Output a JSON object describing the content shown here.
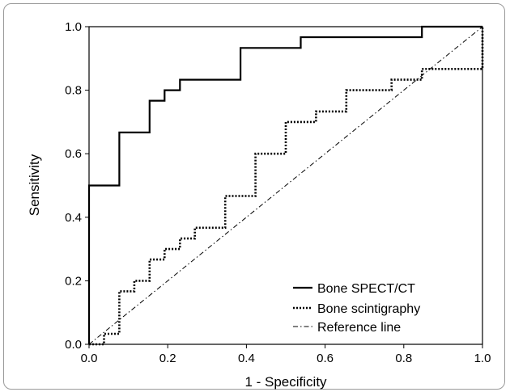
{
  "chart_data": {
    "type": "line",
    "xlabel": "1 - Specificity",
    "ylabel": "Sensitivity",
    "xlim": [
      0.0,
      1.0
    ],
    "ylim": [
      0.0,
      1.0
    ],
    "xticks": [
      "0.0",
      "0.2",
      "0.4",
      "0.6",
      "0.8",
      "1.0"
    ],
    "yticks": [
      "0.0",
      "0.2",
      "0.4",
      "0.6",
      "0.8",
      "1.0"
    ],
    "grid": false,
    "legend_position": "bottom-right",
    "series": [
      {
        "name": "Bone SPECT/CT",
        "style": "solid",
        "color": "#000000",
        "x": [
          0,
          0,
          0.077,
          0.077,
          0.154,
          0.154,
          0.192,
          0.192,
          0.231,
          0.231,
          0.385,
          0.385,
          0.538,
          0.538,
          0.846,
          0.846,
          1.0
        ],
        "y": [
          0,
          0.5,
          0.5,
          0.667,
          0.667,
          0.767,
          0.767,
          0.8,
          0.8,
          0.833,
          0.833,
          0.933,
          0.933,
          0.967,
          0.967,
          1.0,
          1.0
        ]
      },
      {
        "name": "Bone scintigraphy",
        "style": "dotted",
        "color": "#000000",
        "x": [
          0,
          0.038,
          0.038,
          0.077,
          0.077,
          0.115,
          0.115,
          0.154,
          0.154,
          0.192,
          0.192,
          0.231,
          0.231,
          0.269,
          0.269,
          0.346,
          0.346,
          0.423,
          0.423,
          0.5,
          0.5,
          0.577,
          0.577,
          0.654,
          0.654,
          0.769,
          0.769,
          0.846,
          0.846,
          1.0,
          1.0
        ],
        "y": [
          0,
          0,
          0.033,
          0.033,
          0.167,
          0.167,
          0.2,
          0.2,
          0.267,
          0.267,
          0.3,
          0.3,
          0.333,
          0.333,
          0.367,
          0.367,
          0.467,
          0.467,
          0.6,
          0.6,
          0.7,
          0.7,
          0.733,
          0.733,
          0.8,
          0.8,
          0.833,
          0.833,
          0.867,
          0.867,
          1.0
        ]
      },
      {
        "name": "Reference line",
        "style": "dashdot",
        "color": "#000000",
        "x": [
          0,
          1
        ],
        "y": [
          0,
          1
        ]
      }
    ]
  }
}
